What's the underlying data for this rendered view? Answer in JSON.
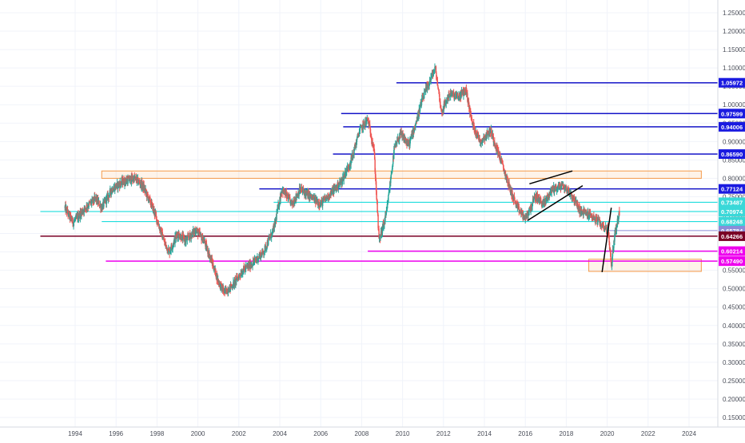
{
  "chart_data": {
    "type": "candlestick",
    "y_axis_ticks": [
      "1.25000",
      "1.20000",
      "1.15000",
      "1.10000",
      "1.05000",
      "1.00000",
      "0.95000",
      "0.90000",
      "0.85000",
      "0.80000",
      "0.75000",
      "0.70000",
      "0.65000",
      "0.60000",
      "0.55000",
      "0.50000",
      "0.45000",
      "0.40000",
      "0.35000",
      "0.30000",
      "0.25000",
      "0.20000",
      "0.15000"
    ],
    "y_tick_values": [
      1.25,
      1.2,
      1.15,
      1.1,
      1.05,
      1.0,
      0.95,
      0.9,
      0.85,
      0.8,
      0.75,
      0.7,
      0.65,
      0.6,
      0.55,
      0.5,
      0.45,
      0.4,
      0.35,
      0.3,
      0.25,
      0.2,
      0.15
    ],
    "x_axis_ticks": [
      "1994",
      "1996",
      "1998",
      "2000",
      "2002",
      "2004",
      "2006",
      "2008",
      "2010",
      "2012",
      "2014",
      "2016",
      "2018",
      "2020",
      "2022",
      "2024"
    ],
    "x_tick_values": [
      1994,
      1996,
      1998,
      2000,
      2002,
      2004,
      2006,
      2008,
      2010,
      2012,
      2014,
      2016,
      2018,
      2020,
      2022,
      2024
    ],
    "ylim": [
      0.135,
      1.27
    ],
    "xlim": [
      1992.3,
      2025.8
    ],
    "grid": true,
    "bull_color": "#26a69a",
    "bear_color": "#ef5350",
    "price_path": [
      [
        1993.5,
        0.72
      ],
      [
        1993.9,
        0.68
      ],
      [
        1994.5,
        0.72
      ],
      [
        1995.0,
        0.745
      ],
      [
        1995.3,
        0.72
      ],
      [
        1995.8,
        0.77
      ],
      [
        1996.3,
        0.79
      ],
      [
        1996.9,
        0.8
      ],
      [
        1997.3,
        0.78
      ],
      [
        1997.8,
        0.72
      ],
      [
        1998.4,
        0.62
      ],
      [
        1998.6,
        0.6
      ],
      [
        1999.0,
        0.65
      ],
      [
        1999.4,
        0.63
      ],
      [
        1999.9,
        0.66
      ],
      [
        2000.3,
        0.63
      ],
      [
        2000.7,
        0.57
      ],
      [
        2001.0,
        0.52
      ],
      [
        2001.3,
        0.49
      ],
      [
        2001.7,
        0.51
      ],
      [
        2002.2,
        0.55
      ],
      [
        2002.7,
        0.57
      ],
      [
        2003.2,
        0.6
      ],
      [
        2003.7,
        0.66
      ],
      [
        2004.1,
        0.77
      ],
      [
        2004.6,
        0.73
      ],
      [
        2005.0,
        0.77
      ],
      [
        2005.5,
        0.75
      ],
      [
        2006.0,
        0.73
      ],
      [
        2006.5,
        0.76
      ],
      [
        2007.0,
        0.79
      ],
      [
        2007.5,
        0.85
      ],
      [
        2007.9,
        0.93
      ],
      [
        2008.3,
        0.96
      ],
      [
        2008.6,
        0.88
      ],
      [
        2008.85,
        0.63
      ],
      [
        2009.2,
        0.7
      ],
      [
        2009.6,
        0.88
      ],
      [
        2009.9,
        0.92
      ],
      [
        2010.3,
        0.89
      ],
      [
        2010.7,
        0.96
      ],
      [
        2011.0,
        1.02
      ],
      [
        2011.3,
        1.06
      ],
      [
        2011.6,
        1.1
      ],
      [
        2011.9,
        0.98
      ],
      [
        2012.3,
        1.03
      ],
      [
        2012.7,
        1.02
      ],
      [
        2013.1,
        1.04
      ],
      [
        2013.4,
        0.95
      ],
      [
        2013.8,
        0.9
      ],
      [
        2014.3,
        0.93
      ],
      [
        2014.8,
        0.85
      ],
      [
        2015.2,
        0.78
      ],
      [
        2015.6,
        0.72
      ],
      [
        2016.0,
        0.69
      ],
      [
        2016.5,
        0.75
      ],
      [
        2016.9,
        0.73
      ],
      [
        2017.3,
        0.77
      ],
      [
        2017.8,
        0.78
      ],
      [
        2018.2,
        0.76
      ],
      [
        2018.7,
        0.71
      ],
      [
        2019.2,
        0.7
      ],
      [
        2019.6,
        0.68
      ],
      [
        2020.05,
        0.66
      ],
      [
        2020.2,
        0.56
      ],
      [
        2020.35,
        0.64
      ],
      [
        2020.6,
        0.71
      ]
    ],
    "horizontal_levels": [
      {
        "label": "1.05972",
        "value": 1.05972,
        "x_start": 2009.7,
        "color": "#1515c8",
        "label_bg": "#1a1ae0",
        "width": 1.5
      },
      {
        "label": "0.97599",
        "value": 0.97599,
        "x_start": 2007.0,
        "color": "#1515c8",
        "label_bg": "#1a1ae0",
        "width": 1.5
      },
      {
        "label": "0.94006",
        "value": 0.94006,
        "x_start": 2007.1,
        "color": "#1515c8",
        "label_bg": "#1a1ae0",
        "width": 1.5
      },
      {
        "label": "0.86590",
        "value": 0.8659,
        "x_start": 2006.6,
        "color": "#1515c8",
        "label_bg": "#1a1ae0",
        "width": 1.5
      },
      {
        "label": "0.77124",
        "value": 0.77124,
        "x_start": 2003.0,
        "color": "#1515c8",
        "label_bg": "#1a1ae0",
        "width": 1.5
      },
      {
        "label": "0.73487",
        "value": 0.73487,
        "x_start": 2003.7,
        "color": "#00d8d8",
        "label_bg": "#3ad8d8",
        "width": 1.0
      },
      {
        "label": "0.70974",
        "value": 0.70974,
        "x_start": 1992.3,
        "color": "#00d8d8",
        "label_bg": "#3ad8d8",
        "width": 1.0
      },
      {
        "label": "0.68248",
        "value": 0.68248,
        "x_start": 1995.3,
        "color": "#00d8d8",
        "label_bg": "#3ad8d8",
        "width": 1.0
      },
      {
        "label": "0.65784",
        "value": 0.65784,
        "x_start": 2020.1,
        "color": "#8c8cd8",
        "label_bg": "#8c8cd8",
        "width": 1.0
      },
      {
        "label": "0.64266",
        "value": 0.64266,
        "x_start": 1992.3,
        "color": "#7a0026",
        "label_bg": "#7a0026",
        "width": 1.5
      },
      {
        "label": "0.60214",
        "value": 0.60214,
        "x_start": 2008.3,
        "color": "#ee00ee",
        "label_bg": "#ee00ee",
        "width": 1.5
      },
      {
        "label": "0.57490",
        "value": 0.5749,
        "x_start": 1995.5,
        "color": "#ee00ee",
        "label_bg": "#ee00ee",
        "width": 1.5
      }
    ],
    "zones": [
      {
        "x0": 1995.3,
        "x1": 2024.6,
        "y_top": 0.82,
        "y_bottom": 0.8,
        "color": "#f59a4a"
      },
      {
        "x0": 2019.1,
        "x1": 2024.6,
        "y_top": 0.58,
        "y_bottom": 0.547,
        "color": "#f59a4a"
      }
    ],
    "trendlines": [
      {
        "x0": 2016.2,
        "y0": 0.785,
        "x1": 2018.3,
        "y1": 0.82,
        "color": "#000000"
      },
      {
        "x0": 2016.1,
        "y0": 0.685,
        "x1": 2018.8,
        "y1": 0.78,
        "color": "#000000"
      },
      {
        "x0": 2019.75,
        "y0": 0.545,
        "x1": 2020.2,
        "y1": 0.72,
        "color": "#000000"
      }
    ]
  }
}
